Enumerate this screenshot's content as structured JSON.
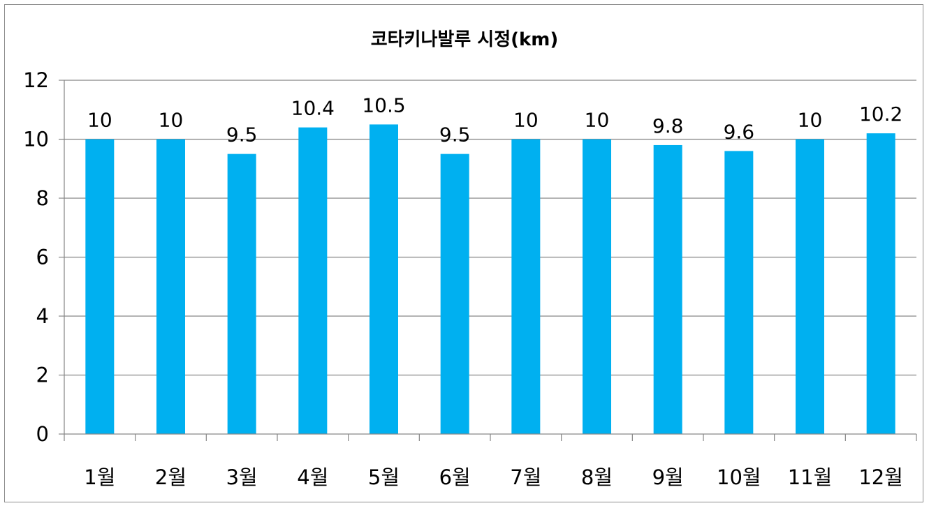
{
  "chart_data": {
    "type": "bar",
    "title": "코타키나발루 시정(km)",
    "xlabel": "",
    "ylabel": "",
    "categories": [
      "1월",
      "2월",
      "3월",
      "4월",
      "5월",
      "6월",
      "7월",
      "8월",
      "9월",
      "10월",
      "11월",
      "12월"
    ],
    "values": [
      10,
      10,
      9.5,
      10.4,
      10.5,
      9.5,
      10,
      10,
      9.8,
      9.6,
      10,
      10.2
    ],
    "data_labels": [
      "10",
      "10",
      "9.5",
      "10.4",
      "10.5",
      "9.5",
      "10",
      "10",
      "9.8",
      "9.6",
      "10",
      "10.2"
    ],
    "ylim": [
      0,
      12
    ],
    "yticks": [
      "0",
      "2",
      "4",
      "6",
      "8",
      "10",
      "12"
    ],
    "grid": true,
    "legend": "none",
    "bar_color": "#00b0f0",
    "grid_color": "#868686"
  }
}
